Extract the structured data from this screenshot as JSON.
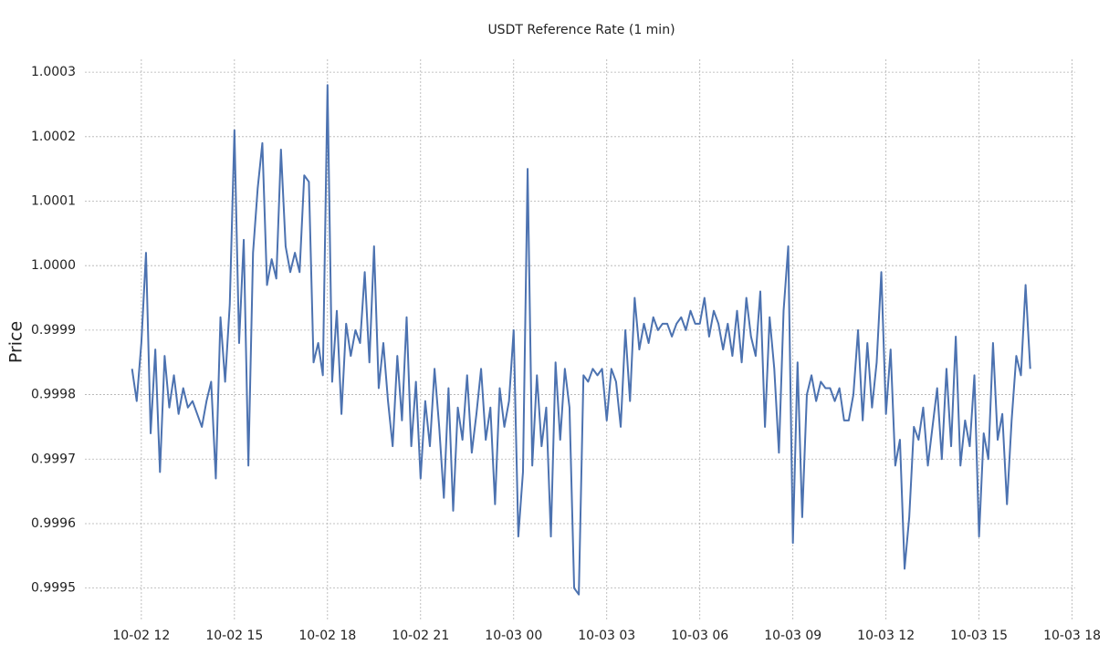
{
  "chart_data": {
    "type": "line",
    "title": "USDT Reference Rate (1 min)",
    "y_label": "Price",
    "x": [
      11.7,
      11.85,
      12.0,
      12.15,
      12.3,
      12.45,
      12.6,
      12.75,
      12.9,
      13.05,
      13.2,
      13.35,
      13.5,
      13.65,
      13.8,
      13.95,
      14.1,
      14.25,
      14.4,
      14.55,
      14.7,
      14.85,
      15.0,
      15.15,
      15.3,
      15.45,
      15.6,
      15.75,
      15.9,
      16.05,
      16.2,
      16.35,
      16.5,
      16.65,
      16.8,
      16.95,
      17.1,
      17.25,
      17.4,
      17.55,
      17.7,
      17.85,
      18.0,
      18.15,
      18.3,
      18.45,
      18.6,
      18.75,
      18.9,
      19.05,
      19.2,
      19.35,
      19.5,
      19.65,
      19.8,
      19.95,
      20.1,
      20.25,
      20.4,
      20.55,
      20.7,
      20.85,
      21.0,
      21.15,
      21.3,
      21.45,
      21.6,
      21.75,
      21.9,
      22.05,
      22.2,
      22.35,
      22.5,
      22.65,
      22.8,
      22.95,
      23.1,
      23.25,
      23.4,
      23.55,
      23.7,
      23.85,
      24.0,
      24.15,
      24.3,
      24.45,
      24.6,
      24.75,
      24.9,
      25.05,
      25.2,
      25.35,
      25.5,
      25.65,
      25.8,
      25.95,
      26.1,
      26.25,
      26.4,
      26.55,
      26.7,
      26.85,
      27.0,
      27.15,
      27.3,
      27.45,
      27.6,
      27.75,
      27.9,
      28.05,
      28.2,
      28.35,
      28.5,
      28.65,
      28.8,
      28.95,
      29.1,
      29.25,
      29.4,
      29.55,
      29.7,
      29.85,
      30.0,
      30.15,
      30.3,
      30.45,
      30.6,
      30.75,
      30.9,
      31.05,
      31.2,
      31.35,
      31.5,
      31.65,
      31.8,
      31.95,
      32.1,
      32.25,
      32.4,
      32.55,
      32.7,
      32.85,
      33.0,
      33.15,
      33.3,
      33.45,
      33.6,
      33.75,
      33.9,
      34.05,
      34.2,
      34.35,
      34.5,
      34.65,
      34.8,
      34.95,
      35.1,
      35.25,
      35.4,
      35.55,
      35.7,
      35.85,
      36.0,
      36.15,
      36.3,
      36.45,
      36.6,
      36.75,
      36.9,
      37.05,
      37.2,
      37.35,
      37.5,
      37.65,
      37.8,
      37.95,
      38.1,
      38.25,
      38.4,
      38.55,
      38.7,
      38.85,
      39.0,
      39.15,
      39.3,
      39.45,
      39.6,
      39.75,
      39.9,
      40.05,
      40.2,
      40.35,
      40.5,
      40.65
    ],
    "series": [
      {
        "name": "USDT",
        "color": "#4c72b0",
        "values": [
          0.99984,
          0.99979,
          0.99988,
          1.00002,
          0.99974,
          0.99987,
          0.99968,
          0.99986,
          0.99978,
          0.99983,
          0.99977,
          0.99981,
          0.99978,
          0.99979,
          0.99977,
          0.99975,
          0.99979,
          0.99982,
          0.99967,
          0.99992,
          0.99982,
          0.99994,
          1.00021,
          0.99988,
          1.00004,
          0.99969,
          1.00002,
          1.00012,
          1.00019,
          0.99997,
          1.00001,
          0.99998,
          1.00018,
          1.00003,
          0.99999,
          1.00002,
          0.99999,
          1.00014,
          1.00013,
          0.99985,
          0.99988,
          0.99983,
          1.00028,
          0.99982,
          0.99993,
          0.99977,
          0.99991,
          0.99986,
          0.9999,
          0.99988,
          0.99999,
          0.99985,
          1.00003,
          0.99981,
          0.99988,
          0.99979,
          0.99972,
          0.99986,
          0.99976,
          0.99992,
          0.99972,
          0.99982,
          0.99967,
          0.99979,
          0.99972,
          0.99984,
          0.99975,
          0.99964,
          0.99981,
          0.99962,
          0.99978,
          0.99973,
          0.99983,
          0.99971,
          0.99977,
          0.99984,
          0.99973,
          0.99978,
          0.99963,
          0.99981,
          0.99975,
          0.99979,
          0.9999,
          0.99958,
          0.99968,
          1.00015,
          0.99969,
          0.99983,
          0.99972,
          0.99978,
          0.99958,
          0.99985,
          0.99973,
          0.99984,
          0.99978,
          0.9995,
          0.99949,
          0.99983,
          0.99982,
          0.99984,
          0.99983,
          0.99984,
          0.99976,
          0.99984,
          0.99982,
          0.99975,
          0.9999,
          0.99979,
          0.99995,
          0.99987,
          0.99991,
          0.99988,
          0.99992,
          0.9999,
          0.99991,
          0.99991,
          0.99989,
          0.99991,
          0.99992,
          0.9999,
          0.99993,
          0.99991,
          0.99991,
          0.99995,
          0.99989,
          0.99993,
          0.99991,
          0.99987,
          0.99991,
          0.99986,
          0.99993,
          0.99985,
          0.99995,
          0.99989,
          0.99986,
          0.99996,
          0.99975,
          0.99992,
          0.99984,
          0.99971,
          0.99993,
          1.00003,
          0.99957,
          0.99985,
          0.99961,
          0.9998,
          0.99983,
          0.99979,
          0.99982,
          0.99981,
          0.99981,
          0.99979,
          0.99981,
          0.99976,
          0.99976,
          0.9998,
          0.9999,
          0.99976,
          0.99988,
          0.99978,
          0.99985,
          0.99999,
          0.99977,
          0.99987,
          0.99969,
          0.99973,
          0.99953,
          0.99961,
          0.99975,
          0.99973,
          0.99978,
          0.99969,
          0.99975,
          0.99981,
          0.9997,
          0.99984,
          0.99972,
          0.99989,
          0.99969,
          0.99976,
          0.99972,
          0.99983,
          0.99958,
          0.99974,
          0.9997,
          0.99988,
          0.99973,
          0.99977,
          0.99963,
          0.99976,
          0.99986,
          0.99983,
          0.99997,
          0.99984
        ]
      }
    ],
    "xlim": [
      10.18,
      42.1
    ],
    "xticks": [
      {
        "value": 12,
        "label": "10-02 12"
      },
      {
        "value": 15,
        "label": "10-02 15"
      },
      {
        "value": 18,
        "label": "10-02 18"
      },
      {
        "value": 21,
        "label": "10-02 21"
      },
      {
        "value": 24,
        "label": "10-03 00"
      },
      {
        "value": 27,
        "label": "10-03 03"
      },
      {
        "value": 30,
        "label": "10-03 06"
      },
      {
        "value": 33,
        "label": "10-03 09"
      },
      {
        "value": 36,
        "label": "10-03 12"
      },
      {
        "value": 39,
        "label": "10-03 15"
      },
      {
        "value": 42,
        "label": "10-03 18"
      }
    ],
    "ylim": [
      0.99945,
      1.00032
    ],
    "yticks": [
      0.9995,
      0.9996,
      0.9997,
      0.9998,
      0.9999,
      {
        "value": 1,
        "label": "1.0000"
      },
      1.0001,
      1.0002,
      1.0003
    ],
    "grid": true
  }
}
